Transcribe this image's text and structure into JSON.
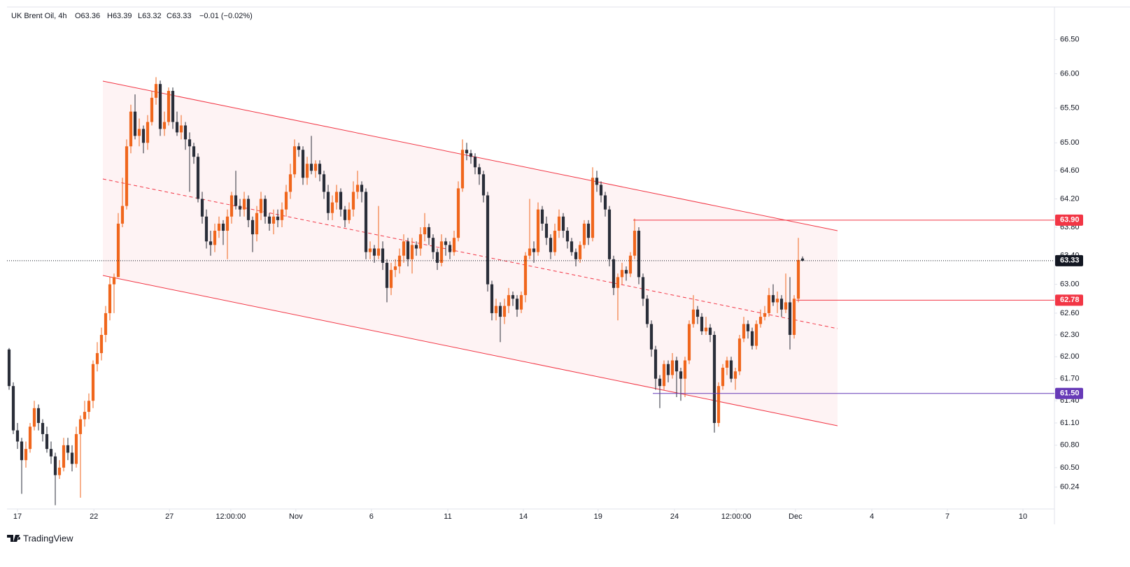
{
  "chart_data": {
    "type": "candlestick",
    "header": [
      "UK Brent Oil, 4h",
      "O63.36",
      "H63.39",
      "L63.32",
      "C63.33",
      "−0.01 (−0.02%)"
    ],
    "brand": "TradingView",
    "up_color": "#f0661c",
    "down_color": "#2a2e39",
    "log_scale": true,
    "grid": false,
    "ylim": [
      59.95,
      66.98
    ],
    "yticks": [
      {
        "value": 60.24,
        "label": "60.24"
      },
      {
        "value": 60.5,
        "label": "60.50"
      },
      {
        "value": 60.8,
        "label": "60.80"
      },
      {
        "value": 61.1,
        "label": "61.10"
      },
      {
        "value": 61.4,
        "label": "61.40"
      },
      {
        "value": 61.7,
        "label": "61.70"
      },
      {
        "value": 62,
        "label": "62.00"
      },
      {
        "value": 62.3,
        "label": "62.30"
      },
      {
        "value": 62.6,
        "label": "62.60"
      },
      {
        "value": 63,
        "label": "63.00"
      },
      {
        "value": 63.4,
        "label": "63.40"
      },
      {
        "value": 63.8,
        "label": "63.80"
      },
      {
        "value": 64.2,
        "label": "64.20"
      },
      {
        "value": 64.6,
        "label": "64.60"
      },
      {
        "value": 65,
        "label": "65.00"
      },
      {
        "value": 65.5,
        "label": "65.50"
      },
      {
        "value": 66,
        "label": "66.00"
      },
      {
        "value": 66.5,
        "label": "66.50"
      }
    ],
    "xlim": [
      -0.5,
      249
    ],
    "xticks": [
      {
        "value": 2,
        "label": "17"
      },
      {
        "value": 20.2,
        "label": "22"
      },
      {
        "value": 38.2,
        "label": "27"
      },
      {
        "value": 52.8,
        "label": "12:00:00"
      },
      {
        "value": 68.3,
        "label": "Nov"
      },
      {
        "value": 86.3,
        "label": "6"
      },
      {
        "value": 104.5,
        "label": "11"
      },
      {
        "value": 122.5,
        "label": "14"
      },
      {
        "value": 140.3,
        "label": "19"
      },
      {
        "value": 158.5,
        "label": "24"
      },
      {
        "value": 173.2,
        "label": "12:00:00"
      },
      {
        "value": 187.3,
        "label": "Dec"
      },
      {
        "value": 205.5,
        "label": "4"
      },
      {
        "value": 223.5,
        "label": "7"
      },
      {
        "value": 241.5,
        "label": "10"
      }
    ],
    "price_lines": [
      {
        "value": 63.9,
        "label": "63.90",
        "color": "#f23645"
      },
      {
        "value": 62.78,
        "label": "62.78",
        "color": "#f23645"
      },
      {
        "value": 61.5,
        "label": "61.50",
        "color": "#673ab7"
      }
    ],
    "last_price": {
      "value": 63.33,
      "label": "63.33",
      "color": "#131722"
    },
    "candles": [
      [
        62.1,
        62.12,
        61.55,
        61.6
      ],
      [
        61.6,
        61.65,
        60.95,
        61.0
      ],
      [
        61.0,
        61.1,
        60.75,
        60.85
      ],
      [
        60.85,
        60.9,
        60.15,
        60.6
      ],
      [
        60.6,
        60.85,
        60.5,
        60.75
      ],
      [
        60.75,
        61.1,
        60.7,
        61.05
      ],
      [
        61.05,
        61.4,
        61.0,
        61.3
      ],
      [
        61.3,
        61.35,
        61.0,
        61.1
      ],
      [
        61.1,
        61.15,
        60.85,
        60.95
      ],
      [
        60.95,
        61.05,
        60.7,
        60.75
      ],
      [
        60.75,
        60.85,
        60.55,
        60.65
      ],
      [
        60.65,
        60.7,
        60.0,
        60.4
      ],
      [
        60.4,
        60.6,
        60.35,
        60.5
      ],
      [
        60.5,
        60.9,
        60.45,
        60.8
      ],
      [
        60.8,
        60.9,
        60.6,
        60.7
      ],
      [
        60.7,
        60.8,
        60.45,
        60.55
      ],
      [
        60.55,
        61.05,
        60.5,
        60.95
      ],
      [
        60.95,
        61.2,
        60.1,
        61.15
      ],
      [
        61.15,
        61.4,
        61.05,
        61.25
      ],
      [
        61.25,
        61.5,
        61.15,
        61.4
      ],
      [
        61.4,
        61.95,
        61.3,
        61.9
      ],
      [
        61.9,
        62.2,
        61.8,
        62.05
      ],
      [
        62.05,
        62.4,
        61.95,
        62.3
      ],
      [
        62.3,
        62.7,
        62.2,
        62.6
      ],
      [
        62.6,
        63.1,
        62.5,
        63.0
      ],
      [
        63.0,
        63.15,
        62.6,
        63.1
      ],
      [
        63.1,
        64.0,
        63.1,
        63.85
      ],
      [
        63.85,
        64.5,
        63.8,
        64.1
      ],
      [
        64.1,
        65.05,
        64.05,
        64.95
      ],
      [
        64.95,
        65.55,
        64.85,
        65.45
      ],
      [
        65.45,
        65.7,
        65.05,
        65.1
      ],
      [
        65.1,
        65.35,
        64.95,
        65.2
      ],
      [
        65.2,
        65.25,
        64.85,
        65.0
      ],
      [
        65.0,
        65.4,
        64.9,
        65.3
      ],
      [
        65.3,
        65.75,
        65.25,
        65.65
      ],
      [
        65.65,
        65.95,
        65.55,
        65.85
      ],
      [
        65.85,
        65.9,
        65.1,
        65.2
      ],
      [
        65.2,
        65.45,
        65.1,
        65.3
      ],
      [
        65.3,
        65.8,
        65.25,
        65.75
      ],
      [
        65.75,
        65.8,
        65.2,
        65.3
      ],
      [
        65.3,
        65.45,
        65.1,
        65.15
      ],
      [
        65.15,
        65.4,
        65.05,
        65.25
      ],
      [
        65.25,
        65.3,
        64.9,
        65.05
      ],
      [
        65.05,
        65.15,
        64.3,
        64.95
      ],
      [
        64.95,
        65.0,
        64.7,
        64.8
      ],
      [
        64.8,
        64.85,
        64.15,
        64.2
      ],
      [
        64.2,
        64.3,
        63.85,
        63.95
      ],
      [
        63.95,
        64.05,
        63.5,
        63.6
      ],
      [
        63.6,
        63.75,
        63.4,
        63.55
      ],
      [
        63.55,
        63.85,
        63.45,
        63.75
      ],
      [
        63.75,
        63.95,
        63.65,
        63.85
      ],
      [
        63.85,
        63.9,
        63.55,
        63.75
      ],
      [
        63.75,
        64.05,
        63.35,
        63.95
      ],
      [
        63.95,
        64.3,
        63.85,
        64.25
      ],
      [
        64.25,
        64.6,
        64.05,
        64.1
      ],
      [
        64.1,
        64.2,
        63.95,
        64.05
      ],
      [
        64.05,
        64.3,
        63.95,
        64.2
      ],
      [
        64.2,
        64.25,
        63.8,
        63.9
      ],
      [
        63.9,
        63.95,
        63.45,
        63.7
      ],
      [
        63.7,
        64.1,
        63.6,
        64.0
      ],
      [
        64.0,
        64.3,
        63.9,
        64.2
      ],
      [
        64.2,
        64.25,
        63.85,
        63.95
      ],
      [
        63.95,
        64.0,
        63.75,
        63.85
      ],
      [
        63.85,
        64.05,
        63.7,
        63.95
      ],
      [
        63.95,
        64.05,
        63.8,
        63.9
      ],
      [
        63.9,
        64.15,
        63.8,
        64.05
      ],
      [
        64.05,
        64.4,
        63.95,
        64.3
      ],
      [
        64.3,
        64.7,
        64.2,
        64.55
      ],
      [
        64.55,
        65.05,
        64.5,
        64.95
      ],
      [
        64.95,
        65.0,
        64.8,
        64.9
      ],
      [
        64.9,
        64.95,
        64.4,
        64.5
      ],
      [
        64.5,
        64.8,
        64.4,
        64.7
      ],
      [
        64.7,
        65.1,
        64.55,
        64.6
      ],
      [
        64.6,
        64.75,
        64.5,
        64.7
      ],
      [
        64.7,
        64.75,
        64.45,
        64.55
      ],
      [
        64.55,
        64.6,
        64.2,
        64.3
      ],
      [
        64.3,
        64.4,
        63.9,
        64.0
      ],
      [
        64.0,
        64.25,
        63.9,
        64.15
      ],
      [
        64.15,
        64.4,
        64.05,
        64.3
      ],
      [
        64.3,
        64.35,
        63.95,
        64.05
      ],
      [
        64.05,
        64.1,
        63.8,
        63.9
      ],
      [
        63.9,
        64.15,
        63.85,
        64.05
      ],
      [
        64.05,
        64.45,
        63.95,
        64.3
      ],
      [
        64.3,
        64.6,
        64.2,
        64.4
      ],
      [
        64.4,
        64.45,
        64.15,
        64.3
      ],
      [
        64.3,
        64.35,
        63.35,
        63.45
      ],
      [
        63.45,
        63.6,
        63.35,
        63.5
      ],
      [
        63.5,
        63.55,
        63.3,
        63.4
      ],
      [
        63.4,
        64.1,
        63.35,
        63.5
      ],
      [
        63.5,
        63.6,
        63.2,
        63.3
      ],
      [
        63.3,
        63.35,
        62.75,
        62.95
      ],
      [
        62.95,
        63.3,
        62.85,
        63.2
      ],
      [
        63.2,
        63.35,
        63.1,
        63.25
      ],
      [
        63.25,
        63.5,
        63.15,
        63.4
      ],
      [
        63.4,
        63.7,
        63.3,
        63.6
      ],
      [
        63.6,
        63.65,
        63.25,
        63.35
      ],
      [
        63.35,
        63.65,
        63.15,
        63.55
      ],
      [
        63.55,
        63.6,
        63.4,
        63.5
      ],
      [
        63.5,
        63.8,
        63.4,
        63.7
      ],
      [
        63.7,
        64.0,
        63.6,
        63.8
      ],
      [
        63.8,
        63.85,
        63.55,
        63.65
      ],
      [
        63.65,
        63.7,
        63.35,
        63.45
      ],
      [
        63.45,
        63.5,
        63.2,
        63.3
      ],
      [
        63.3,
        63.7,
        63.25,
        63.6
      ],
      [
        63.6,
        63.65,
        63.4,
        63.55
      ],
      [
        63.55,
        63.6,
        63.35,
        63.45
      ],
      [
        63.45,
        63.75,
        63.4,
        63.65
      ],
      [
        63.65,
        64.45,
        63.6,
        64.35
      ],
      [
        64.35,
        65.05,
        64.3,
        64.9
      ],
      [
        64.9,
        65.0,
        64.75,
        64.85
      ],
      [
        64.85,
        64.9,
        64.7,
        64.8
      ],
      [
        64.8,
        64.85,
        64.55,
        64.65
      ],
      [
        64.65,
        64.7,
        64.4,
        64.55
      ],
      [
        64.55,
        64.6,
        64.15,
        64.25
      ],
      [
        64.25,
        64.3,
        62.9,
        63.0
      ],
      [
        63.0,
        63.05,
        62.5,
        62.6
      ],
      [
        62.6,
        62.8,
        62.5,
        62.7
      ],
      [
        62.7,
        62.75,
        62.2,
        62.55
      ],
      [
        62.55,
        62.8,
        62.45,
        62.7
      ],
      [
        62.7,
        62.95,
        62.6,
        62.85
      ],
      [
        62.85,
        62.9,
        62.7,
        62.8
      ],
      [
        62.8,
        62.85,
        62.55,
        62.65
      ],
      [
        62.65,
        62.9,
        62.6,
        62.85
      ],
      [
        62.85,
        63.45,
        62.75,
        63.4
      ],
      [
        63.4,
        64.2,
        63.35,
        63.5
      ],
      [
        63.5,
        63.6,
        63.3,
        63.45
      ],
      [
        63.45,
        64.15,
        63.4,
        64.05
      ],
      [
        64.05,
        64.1,
        63.75,
        63.85
      ],
      [
        63.85,
        63.95,
        63.55,
        63.65
      ],
      [
        63.65,
        63.7,
        63.35,
        63.45
      ],
      [
        63.45,
        63.85,
        63.4,
        63.75
      ],
      [
        63.75,
        64.05,
        63.65,
        63.95
      ],
      [
        63.95,
        64.0,
        63.65,
        63.75
      ],
      [
        63.75,
        63.8,
        63.5,
        63.6
      ],
      [
        63.6,
        63.65,
        63.4,
        63.45
      ],
      [
        63.45,
        63.5,
        63.25,
        63.35
      ],
      [
        63.35,
        63.6,
        63.3,
        63.55
      ],
      [
        63.55,
        63.9,
        63.5,
        63.85
      ],
      [
        63.85,
        63.9,
        63.55,
        63.65
      ],
      [
        63.65,
        64.65,
        63.6,
        64.5
      ],
      [
        64.5,
        64.6,
        64.3,
        64.4
      ],
      [
        64.4,
        64.45,
        64.15,
        64.25
      ],
      [
        64.25,
        64.3,
        63.95,
        64.05
      ],
      [
        64.05,
        64.1,
        63.25,
        63.35
      ],
      [
        63.35,
        63.4,
        62.85,
        62.95
      ],
      [
        62.95,
        63.15,
        62.5,
        63.1
      ],
      [
        63.1,
        63.3,
        63.0,
        63.2
      ],
      [
        63.2,
        63.25,
        63.05,
        63.15
      ],
      [
        63.15,
        63.45,
        63.1,
        63.4
      ],
      [
        63.4,
        63.92,
        63.35,
        63.75
      ],
      [
        63.75,
        63.8,
        63.0,
        63.1
      ],
      [
        63.1,
        63.15,
        62.7,
        62.8
      ],
      [
        62.8,
        62.85,
        62.4,
        62.45
      ],
      [
        62.45,
        62.5,
        62.0,
        62.1
      ],
      [
        62.1,
        62.15,
        61.55,
        61.7
      ],
      [
        61.7,
        61.75,
        61.3,
        61.6
      ],
      [
        61.6,
        61.95,
        61.55,
        61.9
      ],
      [
        61.9,
        61.95,
        61.65,
        61.75
      ],
      [
        61.75,
        62.05,
        61.7,
        61.95
      ],
      [
        61.95,
        62.0,
        61.45,
        61.8
      ],
      [
        61.8,
        61.85,
        61.4,
        61.7
      ],
      [
        61.7,
        62.0,
        61.45,
        61.95
      ],
      [
        61.95,
        62.5,
        61.9,
        62.45
      ],
      [
        62.45,
        62.85,
        62.4,
        62.65
      ],
      [
        62.65,
        62.7,
        62.45,
        62.55
      ],
      [
        62.55,
        62.6,
        62.3,
        62.35
      ],
      [
        62.35,
        62.55,
        62.3,
        62.4
      ],
      [
        62.4,
        62.45,
        62.2,
        62.3
      ],
      [
        62.3,
        62.35,
        60.97,
        61.1
      ],
      [
        61.1,
        61.65,
        61.05,
        61.6
      ],
      [
        61.6,
        61.9,
        61.55,
        61.85
      ],
      [
        61.85,
        62.0,
        61.75,
        61.95
      ],
      [
        61.95,
        62.0,
        61.65,
        61.7
      ],
      [
        61.7,
        61.85,
        61.55,
        61.8
      ],
      [
        61.8,
        62.3,
        61.75,
        62.25
      ],
      [
        62.25,
        62.55,
        62.2,
        62.45
      ],
      [
        62.45,
        62.5,
        62.25,
        62.35
      ],
      [
        62.35,
        62.4,
        62.1,
        62.15
      ],
      [
        62.15,
        62.5,
        62.1,
        62.45
      ],
      [
        62.45,
        62.65,
        62.4,
        62.55
      ],
      [
        62.55,
        62.7,
        62.5,
        62.6
      ],
      [
        62.6,
        62.95,
        62.55,
        62.85
      ],
      [
        62.85,
        63.0,
        62.7,
        62.75
      ],
      [
        62.75,
        62.9,
        62.6,
        62.8
      ],
      [
        62.8,
        62.85,
        62.55,
        62.65
      ],
      [
        62.65,
        63.15,
        62.6,
        62.75
      ],
      [
        62.75,
        63.1,
        62.1,
        62.3
      ],
      [
        62.3,
        62.85,
        62.25,
        62.8
      ],
      [
        62.8,
        63.65,
        62.75,
        63.34
      ],
      [
        63.36,
        63.39,
        63.32,
        63.33
      ]
    ]
  }
}
